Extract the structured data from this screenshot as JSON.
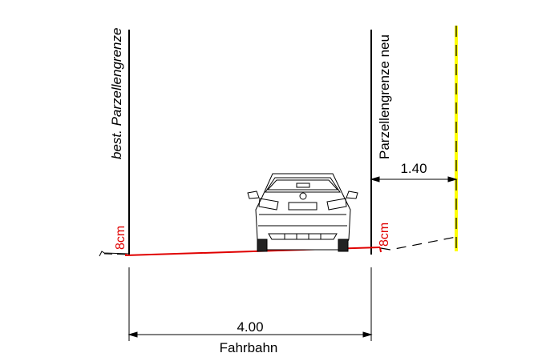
{
  "labels": {
    "existing_boundary": "best. Parzellengrenze",
    "new_boundary": "Parzellengrenze neu",
    "offset_dimension": "1.40",
    "curb_left": "8cm",
    "curb_right": "8cm",
    "road_width": "4.00",
    "road_caption": "Fahrbahn"
  },
  "colors": {
    "line": "#000000",
    "road_surface": "#e00000",
    "marker": "#ffff00"
  },
  "icons": {
    "vehicle": "car-rear-icon"
  }
}
